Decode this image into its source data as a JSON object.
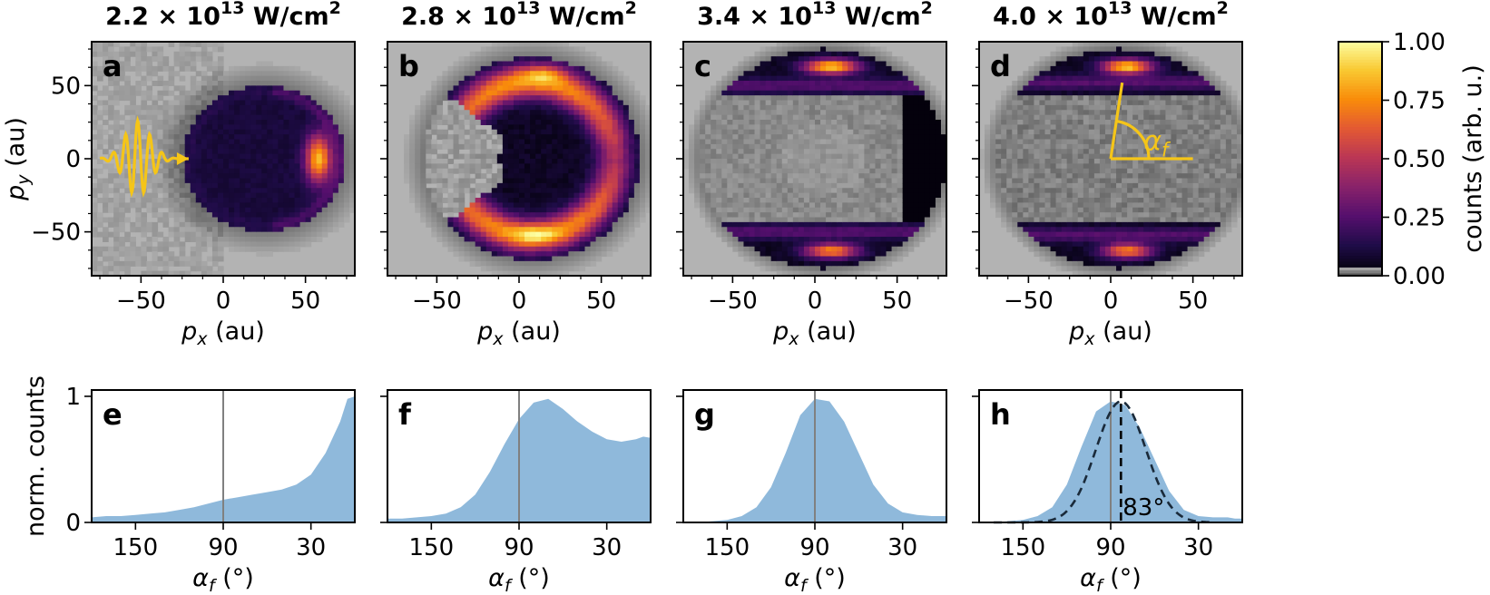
{
  "chart_data": {
    "type": "heatmap",
    "colormap": "inferno",
    "background_color": "#b3b3b3",
    "line_color": "#f5c518",
    "fill_color": "#8fb9db",
    "colorbar": {
      "label": "counts (arb. u.)",
      "range": [
        0,
        1
      ],
      "ticks": [
        "0.00",
        "0.25",
        "0.50",
        "0.75",
        "1.00"
      ]
    },
    "top_row": {
      "xlabel_var": "p",
      "xlabel_sub": "x",
      "xlabel_unit": "(au)",
      "ylabel_var": "p",
      "ylabel_sub": "y",
      "ylabel_unit": "(au)",
      "xlim": [
        -80,
        80
      ],
      "ylim": [
        -80,
        80
      ],
      "xticks": [
        -50,
        0,
        50
      ],
      "xtick_labels": [
        "−50",
        "0",
        "50"
      ],
      "yticks": [
        -50,
        0,
        50
      ],
      "ytick_labels": [
        "−50",
        "0",
        "50"
      ],
      "panels": [
        {
          "letter": "a",
          "title_mant": "2.2 × 10",
          "title_exp": "13",
          "title_unit": " W/cm",
          "title_unit_exp": "2"
        },
        {
          "letter": "b",
          "title_mant": "2.8 × 10",
          "title_exp": "13",
          "title_unit": " W/cm",
          "title_unit_exp": "2"
        },
        {
          "letter": "c",
          "title_mant": "3.4 × 10",
          "title_exp": "13",
          "title_unit": " W/cm",
          "title_unit_exp": "2"
        },
        {
          "letter": "d",
          "title_mant": "4.0 × 10",
          "title_exp": "13",
          "title_unit": " W/cm",
          "title_unit_exp": "2",
          "annotation_var": "α",
          "annotation_sub": "f"
        }
      ]
    },
    "bottom_row": {
      "type": "area",
      "xlabel_var": "α",
      "xlabel_sub": "f",
      "xlabel_unit": "(°)",
      "ylabel": "norm. counts",
      "xlim": [
        180,
        0
      ],
      "ylim": [
        0,
        1.05
      ],
      "xticks": [
        150,
        90,
        30
      ],
      "xtick_labels": [
        "150",
        "90",
        "30"
      ],
      "yticks": [
        0,
        1
      ],
      "ytick_labels": [
        "0",
        "1"
      ],
      "vline": 90,
      "x": [
        180,
        170,
        160,
        150,
        140,
        130,
        120,
        110,
        100,
        90,
        80,
        70,
        60,
        50,
        40,
        30,
        20,
        10,
        5,
        0
      ],
      "series": [
        {
          "panel": "e",
          "values": [
            0.04,
            0.05,
            0.05,
            0.06,
            0.07,
            0.08,
            0.1,
            0.12,
            0.15,
            0.18,
            0.2,
            0.22,
            0.24,
            0.26,
            0.3,
            0.38,
            0.55,
            0.8,
            0.98,
            1.0
          ]
        },
        {
          "panel": "f",
          "values": [
            0.03,
            0.03,
            0.04,
            0.05,
            0.07,
            0.12,
            0.22,
            0.4,
            0.62,
            0.82,
            0.95,
            0.98,
            0.9,
            0.8,
            0.72,
            0.66,
            0.64,
            0.66,
            0.68,
            0.67
          ]
        },
        {
          "panel": "g",
          "values": [
            0.0,
            0.0,
            0.01,
            0.02,
            0.05,
            0.12,
            0.28,
            0.55,
            0.85,
            0.98,
            0.96,
            0.8,
            0.55,
            0.3,
            0.15,
            0.08,
            0.06,
            0.05,
            0.05,
            0.05
          ]
        },
        {
          "panel": "h",
          "values": [
            0.0,
            0.0,
            0.01,
            0.02,
            0.05,
            0.12,
            0.3,
            0.6,
            0.88,
            0.96,
            0.93,
            0.75,
            0.5,
            0.25,
            0.1,
            0.05,
            0.04,
            0.04,
            0.03,
            0.03
          ],
          "fit_center": 83,
          "fit_sigma": 17,
          "fit_label": "83°"
        }
      ]
    }
  }
}
